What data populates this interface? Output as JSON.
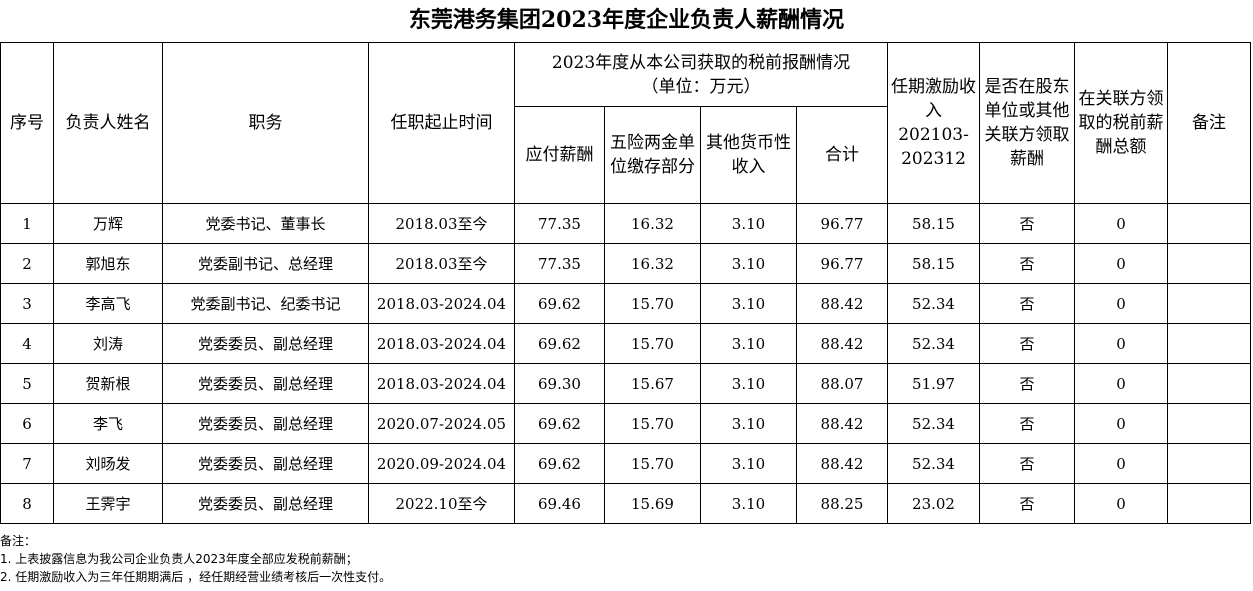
{
  "title": "东莞港务集团2023年度企业负责人薪酬情况",
  "headers": {
    "seq": "序号",
    "name": "负责人姓名",
    "position": "职务",
    "tenure": "任职起止时间",
    "group_line1": "2023年度从本公司获取的税前报酬情况",
    "group_line2": "（单位：万元）",
    "salary": "应付薪酬",
    "insurance": "五险两金单位缴存部分",
    "other_income": "其他货币性收入",
    "total": "合计",
    "incentive_line1": "任期激励收入",
    "incentive_line2": "202103-202312",
    "shareholder": "是否在股东单位或其他关联方领取薪酬",
    "related_party": "在关联方领取的税前薪酬总额",
    "remarks": "备注"
  },
  "rows": [
    {
      "seq": "1",
      "name": "万辉",
      "position": "党委书记、董事长",
      "tenure": "2018.03至今",
      "salary": "77.35",
      "insurance": "16.32",
      "other": "3.10",
      "total": "96.77",
      "incentive": "58.15",
      "shareholder": "否",
      "related": "0",
      "remarks": ""
    },
    {
      "seq": "2",
      "name": "郭旭东",
      "position": "党委副书记、总经理",
      "tenure": "2018.03至今",
      "salary": "77.35",
      "insurance": "16.32",
      "other": "3.10",
      "total": "96.77",
      "incentive": "58.15",
      "shareholder": "否",
      "related": "0",
      "remarks": ""
    },
    {
      "seq": "3",
      "name": "李高飞",
      "position": "党委副书记、纪委书记",
      "tenure": "2018.03-2024.04",
      "salary": "69.62",
      "insurance": "15.70",
      "other": "3.10",
      "total": "88.42",
      "incentive": "52.34",
      "shareholder": "否",
      "related": "0",
      "remarks": ""
    },
    {
      "seq": "4",
      "name": "刘涛",
      "position": "党委委员、副总经理",
      "tenure": "2018.03-2024.04",
      "salary": "69.62",
      "insurance": "15.70",
      "other": "3.10",
      "total": "88.42",
      "incentive": "52.34",
      "shareholder": "否",
      "related": "0",
      "remarks": ""
    },
    {
      "seq": "5",
      "name": "贺新根",
      "position": "党委委员、副总经理",
      "tenure": "2018.03-2024.04",
      "salary": "69.30",
      "insurance": "15.67",
      "other": "3.10",
      "total": "88.07",
      "incentive": "51.97",
      "shareholder": "否",
      "related": "0",
      "remarks": ""
    },
    {
      "seq": "6",
      "name": "李飞",
      "position": "党委委员、副总经理",
      "tenure": "2020.07-2024.05",
      "salary": "69.62",
      "insurance": "15.70",
      "other": "3.10",
      "total": "88.42",
      "incentive": "52.34",
      "shareholder": "否",
      "related": "0",
      "remarks": ""
    },
    {
      "seq": "7",
      "name": "刘旸发",
      "position": "党委委员、副总经理",
      "tenure": "2020.09-2024.04",
      "salary": "69.62",
      "insurance": "15.70",
      "other": "3.10",
      "total": "88.42",
      "incentive": "52.34",
      "shareholder": "否",
      "related": "0",
      "remarks": ""
    },
    {
      "seq": "8",
      "name": "王霁宇",
      "position": "党委委员、副总经理",
      "tenure": "2022.10至今",
      "salary": "69.46",
      "insurance": "15.69",
      "other": "3.10",
      "total": "88.25",
      "incentive": "23.02",
      "shareholder": "否",
      "related": "0",
      "remarks": ""
    }
  ],
  "notes": {
    "heading": "备注：",
    "items": [
      "1. 上表披露信息为我公司企业负责人2023年度全部应发税前薪酬；",
      "2. 任期激励收入为三年任期期满后 ，经任期经营业绩考核后一次性支付。"
    ]
  }
}
